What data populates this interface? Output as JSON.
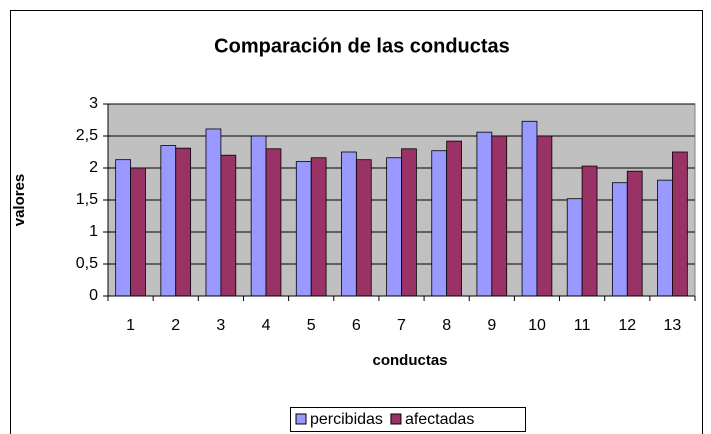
{
  "chart_data": {
    "type": "bar",
    "title": "Comparación de las conductas",
    "x_label": "conductas",
    "y_label": "valores",
    "categories": [
      "1",
      "2",
      "3",
      "4",
      "5",
      "6",
      "7",
      "8",
      "9",
      "10",
      "11",
      "12",
      "13"
    ],
    "series": [
      {
        "name": "percibidas",
        "color": "#9999ff",
        "values": [
          2.13,
          2.35,
          2.61,
          2.5,
          2.1,
          2.25,
          2.16,
          2.27,
          2.56,
          2.73,
          1.52,
          1.77,
          1.81
        ]
      },
      {
        "name": "afectadas",
        "color": "#993366",
        "values": [
          2.0,
          2.31,
          2.2,
          2.3,
          2.16,
          2.13,
          2.3,
          2.42,
          2.5,
          2.5,
          2.03,
          1.95,
          2.25
        ]
      }
    ],
    "ylim": [
      0,
      3
    ],
    "yticks": [
      0,
      {
        "value": 0.5,
        "label": "0,5"
      },
      1,
      {
        "value": 1.5,
        "label": "1,5"
      },
      2,
      {
        "value": 2.5,
        "label": "2,5"
      },
      3
    ],
    "grid": true,
    "legend": "bottom"
  }
}
